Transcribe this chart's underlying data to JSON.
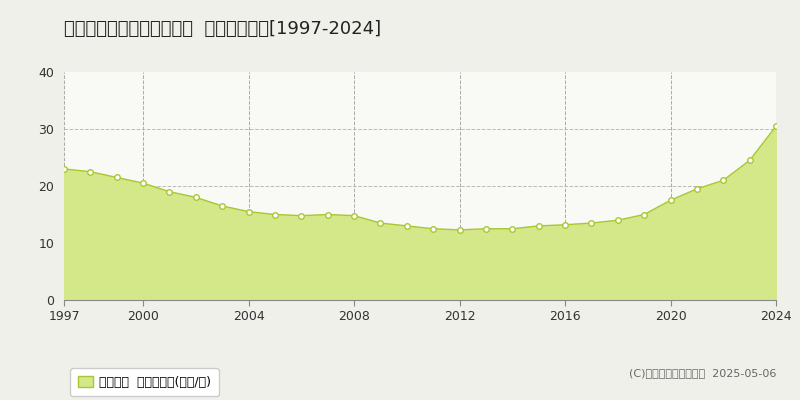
{
  "title": "札幌市手稲区西宮の沢一条  基準地価推移[1997-2024]",
  "years": [
    1997,
    1998,
    1999,
    2000,
    2001,
    2002,
    2003,
    2004,
    2005,
    2006,
    2007,
    2008,
    2009,
    2010,
    2011,
    2012,
    2013,
    2014,
    2015,
    2016,
    2017,
    2018,
    2019,
    2020,
    2021,
    2022,
    2023,
    2024
  ],
  "values": [
    23.0,
    22.5,
    21.5,
    20.5,
    19.0,
    18.0,
    16.5,
    15.5,
    15.0,
    14.8,
    15.0,
    14.8,
    13.5,
    13.0,
    12.5,
    12.3,
    12.5,
    12.5,
    13.0,
    13.2,
    13.5,
    14.0,
    15.0,
    17.5,
    19.5,
    21.0,
    24.5,
    30.5
  ],
  "line_color": "#a8c832",
  "fill_color": "#d4e88a",
  "fill_alpha": 1.0,
  "marker_color": "white",
  "marker_edge_color": "#a8c832",
  "ylim": [
    0,
    40
  ],
  "yticks": [
    0,
    10,
    20,
    30,
    40
  ],
  "xticks": [
    1997,
    2000,
    2004,
    2008,
    2012,
    2016,
    2020,
    2024
  ],
  "grid_color_x": "#aaaaaa",
  "grid_color_y": "#bbbbbb",
  "bg_color": "#f9f9f6",
  "fig_bg_color": "#f0f0eb",
  "legend_label": "基準地価  平均坪単価(万円/坪)",
  "copyright": "(C)土地価格ドットコム  2025-05-06",
  "title_fontsize": 13,
  "axis_fontsize": 9,
  "legend_fontsize": 9
}
